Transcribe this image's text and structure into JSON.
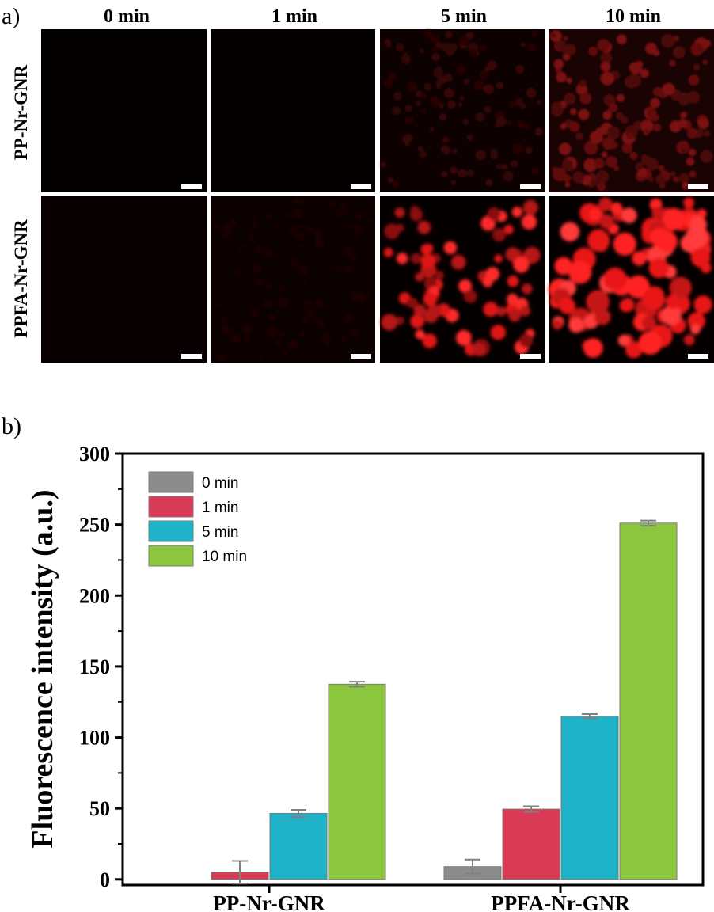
{
  "panel_a": {
    "label": "a)",
    "columns": [
      "0 min",
      "1 min",
      "5 min",
      "10 min"
    ],
    "rows": [
      "PP-Nr-GNR",
      "PPFA-Nr-GNR"
    ]
  },
  "panel_b": {
    "label": "b)"
  },
  "chart_data": {
    "type": "bar",
    "title": "",
    "xlabel": "",
    "ylabel": "Fluorescence intensity (a.u.)",
    "categories": [
      "PP-Nr-GNR",
      "PPFA-Nr-GNR"
    ],
    "ylim": [
      0,
      300
    ],
    "yticks": [
      0,
      50,
      100,
      150,
      200,
      250,
      300
    ],
    "grid": false,
    "legend_position": "top-left",
    "series": [
      {
        "name": "0 min",
        "color": "#8c8c8c",
        "values": [
          0,
          9
        ],
        "errors": [
          0,
          5
        ]
      },
      {
        "name": "1 min",
        "color": "#d93a55",
        "values": [
          5,
          49.5
        ],
        "errors": [
          8,
          2
        ]
      },
      {
        "name": "5 min",
        "color": "#1fb3c9",
        "values": [
          46.5,
          115
        ],
        "errors": [
          2.5,
          1.5
        ]
      },
      {
        "name": "10 min",
        "color": "#8cc63f",
        "values": [
          137.5,
          251
        ],
        "errors": [
          1.8,
          1.8
        ]
      }
    ]
  }
}
